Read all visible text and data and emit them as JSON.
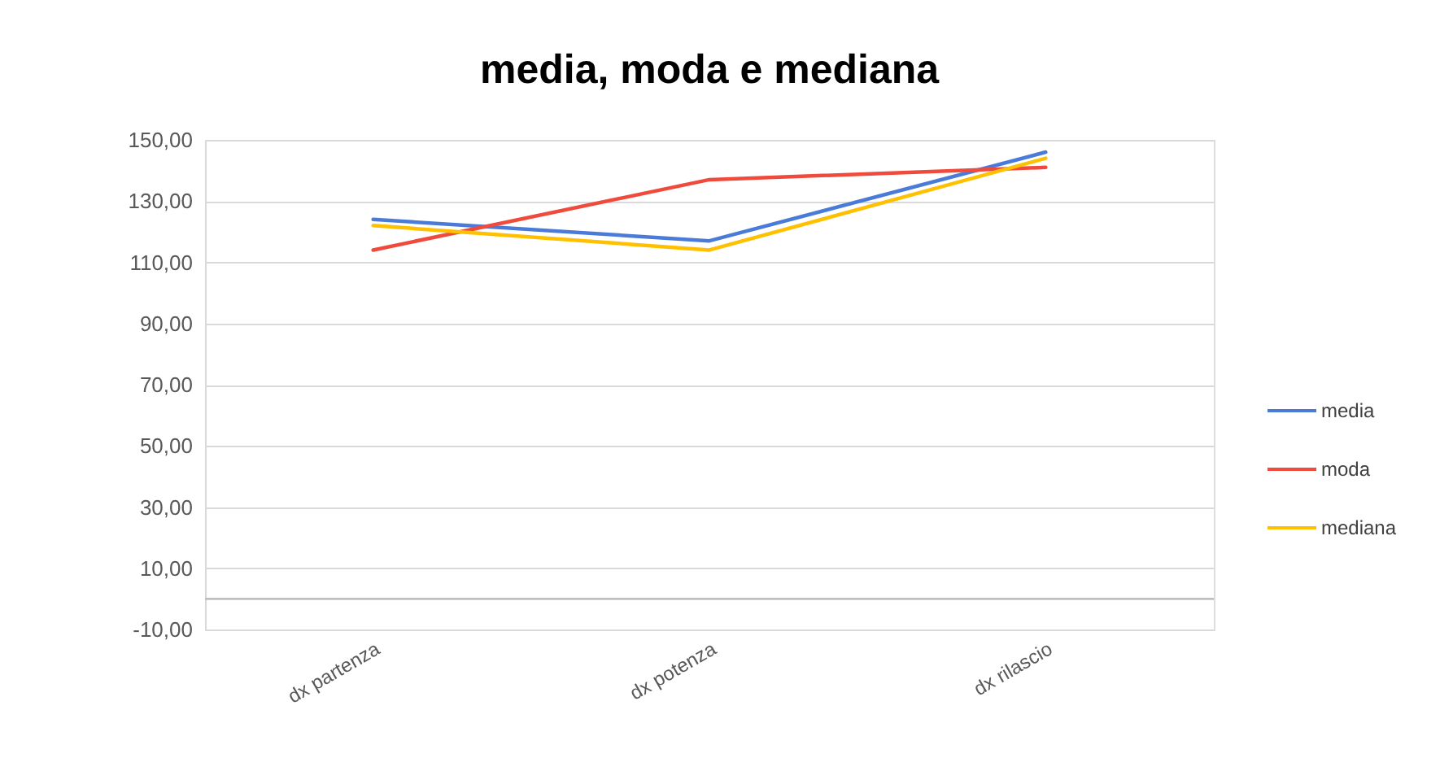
{
  "chart_data": {
    "type": "line",
    "title": "media, moda e mediana",
    "categories": [
      "dx partenza",
      "dx potenza",
      "dx rilascio"
    ],
    "series": [
      {
        "name": "media",
        "color": "#4a7bd8",
        "values": [
          124,
          117,
          146
        ]
      },
      {
        "name": "moda",
        "color": "#f04a3c",
        "values": [
          114,
          137,
          141
        ]
      },
      {
        "name": "mediana",
        "color": "#ffc000",
        "values": [
          122,
          114,
          144
        ]
      }
    ],
    "ylim": [
      -10,
      150
    ],
    "yticks": [
      {
        "value": -10,
        "label": "-10,00"
      },
      {
        "value": 10,
        "label": "10,00"
      },
      {
        "value": 30,
        "label": "30,00"
      },
      {
        "value": 50,
        "label": "50,00"
      },
      {
        "value": 70,
        "label": "70,00"
      },
      {
        "value": 90,
        "label": "90,00"
      },
      {
        "value": 110,
        "label": "110,00"
      },
      {
        "value": 130,
        "label": "130,00"
      },
      {
        "value": 150,
        "label": "150,00"
      }
    ],
    "ref_lines": [
      {
        "axis": "y",
        "value": 0,
        "color": "#bfbfbf"
      }
    ],
    "grid": "y",
    "legend": "right",
    "line_style": "solid"
  }
}
